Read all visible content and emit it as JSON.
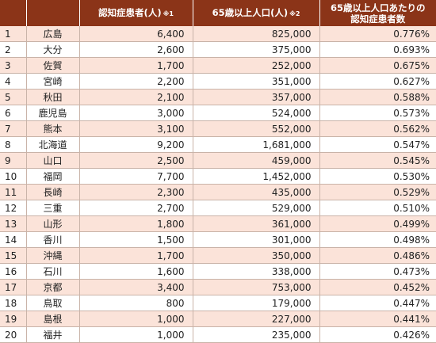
{
  "table": {
    "headers": {
      "rank": "",
      "prefecture": "",
      "patients": "認知症患者(人)",
      "patients_note": "※1",
      "population": "65歳以上人口(人)",
      "population_note": "※2",
      "rate_line1": "65歳以上人口あたりの",
      "rate_line2": "認知症患者数"
    },
    "rows": [
      {
        "rank": "1",
        "prefecture": "広島",
        "patients": "6,400",
        "population": "825,000",
        "rate": "0.776%"
      },
      {
        "rank": "2",
        "prefecture": "大分",
        "patients": "2,600",
        "population": "375,000",
        "rate": "0.693%"
      },
      {
        "rank": "3",
        "prefecture": "佐賀",
        "patients": "1,700",
        "population": "252,000",
        "rate": "0.675%"
      },
      {
        "rank": "4",
        "prefecture": "宮崎",
        "patients": "2,200",
        "population": "351,000",
        "rate": "0.627%"
      },
      {
        "rank": "5",
        "prefecture": "秋田",
        "patients": "2,100",
        "population": "357,000",
        "rate": "0.588%"
      },
      {
        "rank": "6",
        "prefecture": "鹿児島",
        "patients": "3,000",
        "population": "524,000",
        "rate": "0.573%"
      },
      {
        "rank": "7",
        "prefecture": "熊本",
        "patients": "3,100",
        "population": "552,000",
        "rate": "0.562%"
      },
      {
        "rank": "8",
        "prefecture": "北海道",
        "patients": "9,200",
        "population": "1,681,000",
        "rate": "0.547%"
      },
      {
        "rank": "9",
        "prefecture": "山口",
        "patients": "2,500",
        "population": "459,000",
        "rate": "0.545%"
      },
      {
        "rank": "10",
        "prefecture": "福岡",
        "patients": "7,700",
        "population": "1,452,000",
        "rate": "0.530%"
      },
      {
        "rank": "11",
        "prefecture": "長崎",
        "patients": "2,300",
        "population": "435,000",
        "rate": "0.529%"
      },
      {
        "rank": "12",
        "prefecture": "三重",
        "patients": "2,700",
        "population": "529,000",
        "rate": "0.510%"
      },
      {
        "rank": "13",
        "prefecture": "山形",
        "patients": "1,800",
        "population": "361,000",
        "rate": "0.499%"
      },
      {
        "rank": "14",
        "prefecture": "香川",
        "patients": "1,500",
        "population": "301,000",
        "rate": "0.498%"
      },
      {
        "rank": "15",
        "prefecture": "沖縄",
        "patients": "1,700",
        "population": "350,000",
        "rate": "0.486%"
      },
      {
        "rank": "16",
        "prefecture": "石川",
        "patients": "1,600",
        "population": "338,000",
        "rate": "0.473%"
      },
      {
        "rank": "17",
        "prefecture": "京都",
        "patients": "3,400",
        "population": "753,000",
        "rate": "0.452%"
      },
      {
        "rank": "18",
        "prefecture": "鳥取",
        "patients": "800",
        "population": "179,000",
        "rate": "0.447%"
      },
      {
        "rank": "19",
        "prefecture": "島根",
        "patients": "1,000",
        "population": "227,000",
        "rate": "0.441%"
      },
      {
        "rank": "20",
        "prefecture": "福井",
        "patients": "1,000",
        "population": "235,000",
        "rate": "0.426%"
      }
    ]
  },
  "colors": {
    "header_bg": "#8b3418",
    "header_text": "#ffffff",
    "row_odd_bg": "#fbe3d9",
    "row_even_bg": "#ffffff",
    "grid_line": "#c9b3a8"
  }
}
